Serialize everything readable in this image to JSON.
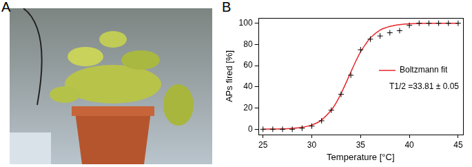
{
  "panel_labels": [
    "A",
    "B"
  ],
  "chart_data": {
    "type": "scatter",
    "x_label": "Temperature [°C]",
    "y_label": "APs fired [%]",
    "xlim": [
      24.5,
      45.5
    ],
    "xticks": [
      25,
      30,
      35,
      40,
      45
    ],
    "ylim": [
      -5,
      105
    ],
    "yticks": [
      0,
      20,
      40,
      60,
      80,
      100
    ],
    "grid": false,
    "legend": "lower right",
    "annotations": [
      {
        "text": "T1/2 =33.81 ± 0.05"
      }
    ],
    "series": [
      {
        "type": "scatter",
        "marker": "cross",
        "color": "#000000",
        "x": [
          25,
          26,
          27,
          28,
          29,
          30,
          31,
          32,
          33,
          34,
          35,
          36,
          37,
          38,
          39,
          40,
          41,
          42,
          43,
          44,
          45
        ],
        "values": [
          0,
          0,
          0,
          0,
          1,
          3,
          8,
          18,
          33,
          51,
          75,
          85,
          88,
          91,
          93,
          98,
          100,
          100,
          100,
          100,
          100
        ]
      },
      {
        "name": "Boltzmann fit",
        "type": "line",
        "line_style": "solid",
        "color": "#e8262a",
        "x": [
          25,
          26,
          27,
          28,
          29,
          30,
          31,
          32,
          32.5,
          33,
          33.5,
          34,
          34.5,
          35,
          35.5,
          36,
          37,
          38,
          39,
          40,
          42,
          45
        ],
        "values": [
          0.1,
          0.2,
          0.3,
          0.8,
          1.8,
          4,
          8.8,
          18.1,
          25,
          33.8,
          43.6,
          53.9,
          64,
          73,
          80,
          86.1,
          93.5,
          97,
          98.7,
          99.4,
          99.9,
          100
        ]
      }
    ]
  }
}
